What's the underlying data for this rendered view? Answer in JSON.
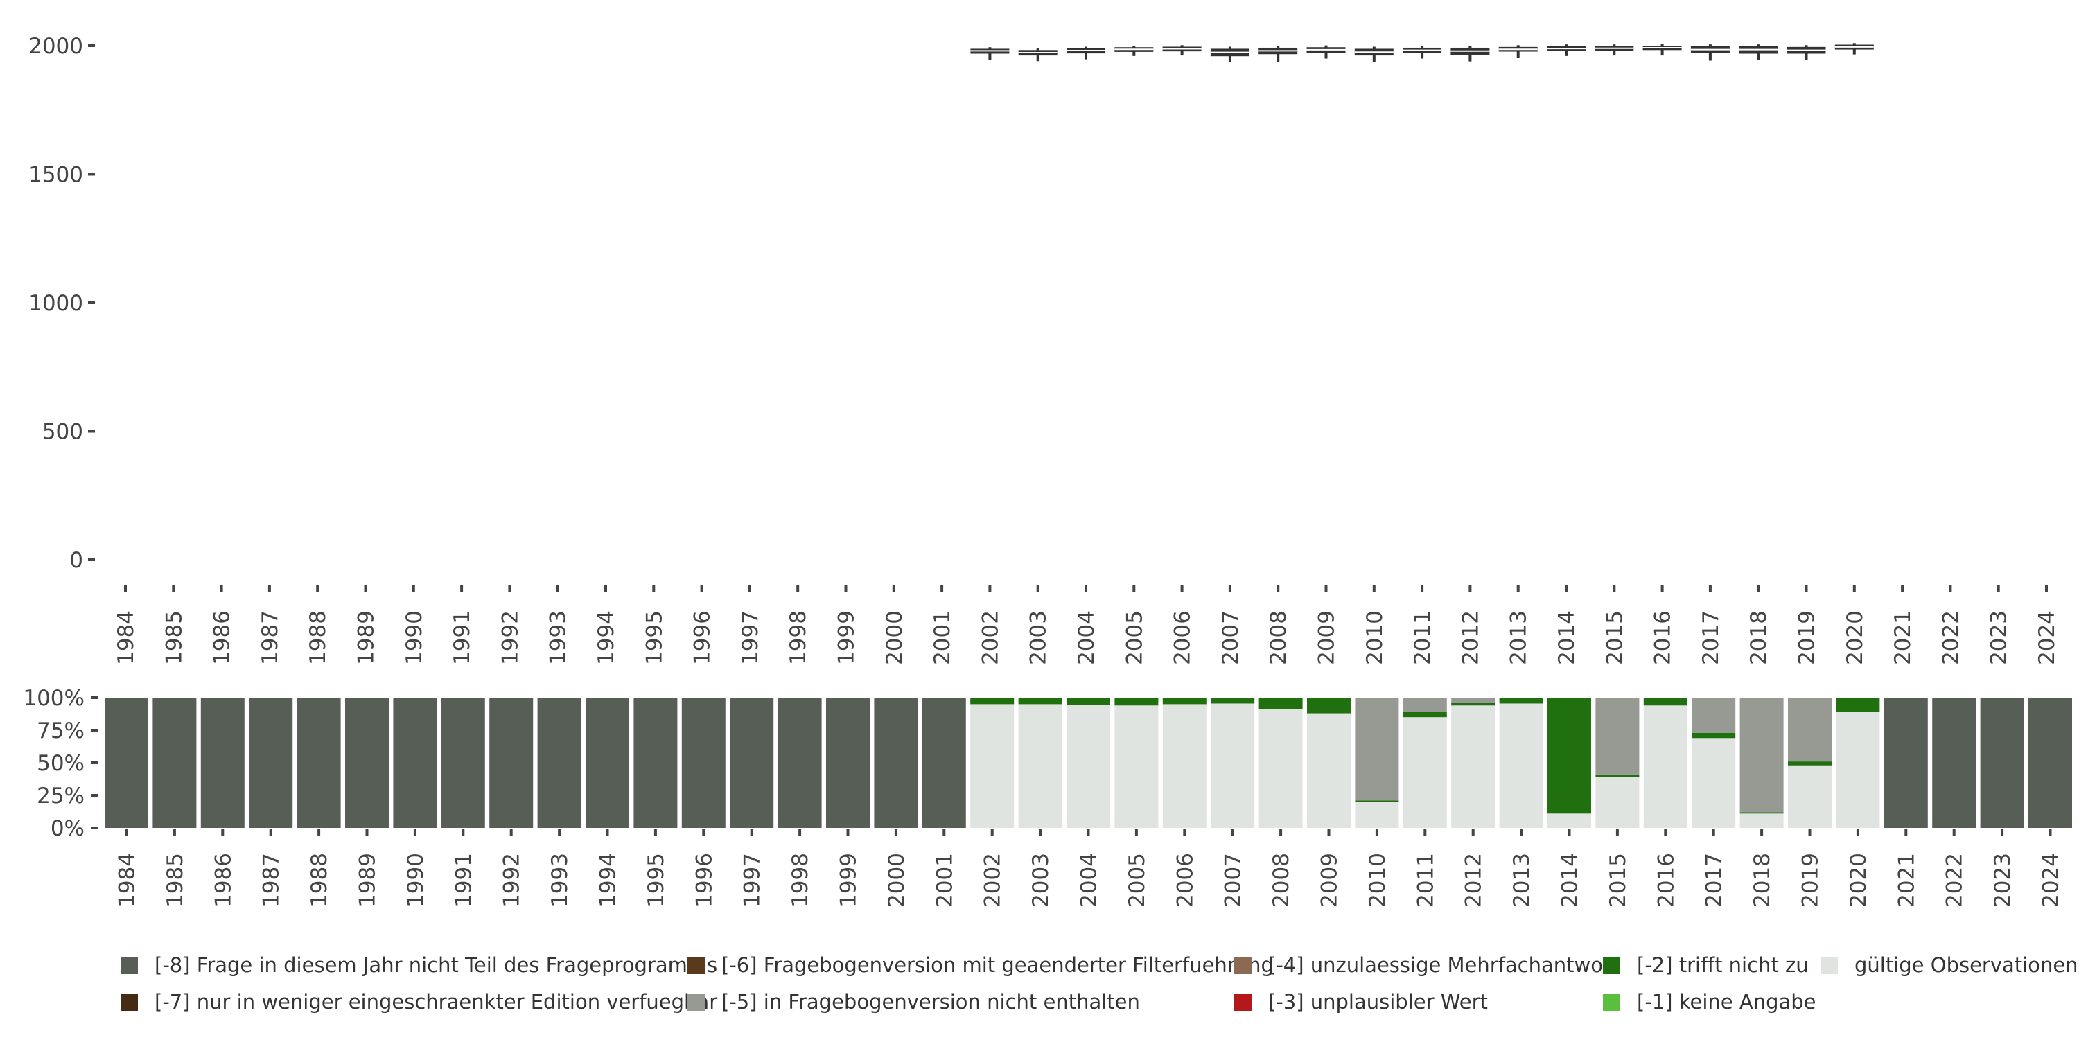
{
  "chart_data": [
    {
      "type": "boxplot",
      "title": "",
      "xlabel": "",
      "ylabel": "",
      "ylim": [
        0,
        2000
      ],
      "y_ticks": [
        0,
        500,
        1000,
        1500,
        2000
      ],
      "x_categories": [
        "1984",
        "1985",
        "1986",
        "1987",
        "1988",
        "1989",
        "1990",
        "1991",
        "1992",
        "1993",
        "1994",
        "1995",
        "1996",
        "1997",
        "1998",
        "1999",
        "2000",
        "2001",
        "2002",
        "2003",
        "2004",
        "2005",
        "2006",
        "2007",
        "2008",
        "2009",
        "2010",
        "2011",
        "2012",
        "2013",
        "2014",
        "2015",
        "2016",
        "2017",
        "2018",
        "2019",
        "2020",
        "2021",
        "2022",
        "2023",
        "2024"
      ],
      "box_color": "#333333",
      "boxes": [
        {
          "year": "2002",
          "q1": 1969,
          "q3": 1988,
          "median": 1980,
          "whisker_low": 1945,
          "whisker_high": 1994
        },
        {
          "year": "2003",
          "q1": 1962,
          "q3": 1983,
          "median": 1973,
          "whisker_low": 1940,
          "whisker_high": 1990
        },
        {
          "year": "2004",
          "q1": 1970,
          "q3": 1990,
          "median": 1981,
          "whisker_low": 1947,
          "whisker_high": 1996
        },
        {
          "year": "2005",
          "q1": 1976,
          "q3": 1994,
          "median": 1986,
          "whisker_low": 1960,
          "whisker_high": 2000
        },
        {
          "year": "2006",
          "q1": 1978,
          "q3": 1996,
          "median": 1988,
          "whisker_low": 1962,
          "whisker_high": 2002
        },
        {
          "year": "2007",
          "q1": 1959,
          "q3": 1988,
          "median": 1974,
          "whisker_low": 1938,
          "whisker_high": 1996
        },
        {
          "year": "2008",
          "q1": 1967,
          "q3": 1992,
          "median": 1980,
          "whisker_low": 1938,
          "whisker_high": 2000
        },
        {
          "year": "2009",
          "q1": 1973,
          "q3": 1994,
          "median": 1984,
          "whisker_low": 1950,
          "whisker_high": 2001
        },
        {
          "year": "2010",
          "q1": 1962,
          "q3": 1988,
          "median": 1975,
          "whisker_low": 1936,
          "whisker_high": 1996
        },
        {
          "year": "2011",
          "q1": 1971,
          "q3": 1992,
          "median": 1982,
          "whisker_low": 1950,
          "whisker_high": 1999
        },
        {
          "year": "2012",
          "q1": 1965,
          "q3": 1992,
          "median": 1979,
          "whisker_low": 1939,
          "whisker_high": 2000
        },
        {
          "year": "2013",
          "q1": 1977,
          "q3": 1995,
          "median": 1986,
          "whisker_low": 1954,
          "whisker_high": 2002
        },
        {
          "year": "2014",
          "q1": 1979,
          "q3": 1999,
          "median": 1989,
          "whisker_low": 1960,
          "whisker_high": 2005
        },
        {
          "year": "2015",
          "q1": 1981,
          "q3": 1998,
          "median": 1990,
          "whisker_low": 1962,
          "whisker_high": 2005
        },
        {
          "year": "2016",
          "q1": 1983,
          "q3": 2000,
          "median": 1992,
          "whisker_low": 1962,
          "whisker_high": 2007
        },
        {
          "year": "2017",
          "q1": 1972,
          "q3": 1998,
          "median": 1985,
          "whisker_low": 1942,
          "whisker_high": 2005
        },
        {
          "year": "2018",
          "q1": 1969,
          "q3": 1998,
          "median": 1985,
          "whisker_low": 1944,
          "whisker_high": 2005
        },
        {
          "year": "2019",
          "q1": 1969,
          "q3": 1995,
          "median": 1982,
          "whisker_low": 1944,
          "whisker_high": 2002
        },
        {
          "year": "2020",
          "q1": 1985,
          "q3": 2004,
          "median": 1995,
          "whisker_low": 1966,
          "whisker_high": 2010
        }
      ]
    },
    {
      "type": "stacked_bar_percent",
      "title": "",
      "xlabel": "",
      "ylabel": "",
      "ylim": [
        0,
        100
      ],
      "y_tick_labels": [
        "0%",
        "25%",
        "50%",
        "75%",
        "100%"
      ],
      "categories": [
        "1984",
        "1985",
        "1986",
        "1987",
        "1988",
        "1989",
        "1990",
        "1991",
        "1992",
        "1993",
        "1994",
        "1995",
        "1996",
        "1997",
        "1998",
        "1999",
        "2000",
        "2001",
        "2002",
        "2003",
        "2004",
        "2005",
        "2006",
        "2007",
        "2008",
        "2009",
        "2010",
        "2011",
        "2012",
        "2013",
        "2014",
        "2015",
        "2016",
        "2017",
        "2018",
        "2019",
        "2020",
        "2021",
        "2022",
        "2023",
        "2024"
      ],
      "series": [
        {
          "name": "gültige Observationen",
          "color": "#e0e4e0",
          "values": [
            0,
            0,
            0,
            0,
            0,
            0,
            0,
            0,
            0,
            0,
            0,
            0,
            0,
            0,
            0,
            0,
            0,
            0,
            95,
            95,
            94.5,
            94,
            95,
            95.5,
            91,
            88,
            20,
            85,
            94,
            95.5,
            11,
            39,
            94,
            69,
            11,
            48,
            89,
            0,
            0,
            0,
            0
          ]
        },
        {
          "name": "[-1] keine Angabe",
          "color": "#5abf3f",
          "values": [
            0,
            0,
            0,
            0,
            0,
            0,
            0,
            0,
            0,
            0,
            0,
            0,
            0,
            0,
            0,
            0,
            0,
            0,
            0,
            0,
            0,
            0,
            0,
            0,
            0,
            0,
            0,
            0,
            0,
            0,
            0,
            0,
            0,
            0,
            0,
            0,
            0,
            0,
            0,
            0,
            0
          ]
        },
        {
          "name": "[-2] trifft nicht zu",
          "color": "#217010",
          "values": [
            0,
            0,
            0,
            0,
            0,
            0,
            0,
            0,
            0,
            0,
            0,
            0,
            0,
            0,
            0,
            0,
            0,
            0,
            5,
            5,
            5.5,
            6,
            5,
            4.5,
            9,
            12,
            1,
            4,
            2,
            4.5,
            89,
            2,
            6,
            4,
            1,
            3,
            11,
            0,
            0,
            0,
            0
          ]
        },
        {
          "name": "[-3] unplausibler Wert",
          "color": "#b3191b",
          "values": [
            0,
            0,
            0,
            0,
            0,
            0,
            0,
            0,
            0,
            0,
            0,
            0,
            0,
            0,
            0,
            0,
            0,
            0,
            0,
            0,
            0,
            0,
            0,
            0,
            0,
            0,
            0,
            0,
            0,
            0,
            0,
            0,
            0,
            0,
            0,
            0,
            0,
            0,
            0,
            0,
            0
          ]
        },
        {
          "name": "[-4] unzulaessige Mehrfachantwort",
          "color": "#8c6a52",
          "values": [
            0,
            0,
            0,
            0,
            0,
            0,
            0,
            0,
            0,
            0,
            0,
            0,
            0,
            0,
            0,
            0,
            0,
            0,
            0,
            0,
            0,
            0,
            0,
            0,
            0,
            0,
            0,
            0,
            0,
            0,
            0,
            0,
            0,
            0,
            0,
            0,
            0,
            0,
            0,
            0,
            0
          ]
        },
        {
          "name": "[-5] in Fragebogenversion nicht enthalten",
          "color": "#969a92",
          "values": [
            0,
            0,
            0,
            0,
            0,
            0,
            0,
            0,
            0,
            0,
            0,
            0,
            0,
            0,
            0,
            0,
            0,
            0,
            0,
            0,
            0,
            0,
            0,
            0,
            0,
            0,
            79,
            11,
            4,
            0,
            0,
            59,
            0,
            27,
            88,
            49,
            0,
            0,
            0,
            0,
            0
          ]
        },
        {
          "name": "[-6] Fragebogenversion mit geaenderter Filterfuehrung",
          "color": "#593a1c",
          "values": [
            0,
            0,
            0,
            0,
            0,
            0,
            0,
            0,
            0,
            0,
            0,
            0,
            0,
            0,
            0,
            0,
            0,
            0,
            0,
            0,
            0,
            0,
            0,
            0,
            0,
            0,
            0,
            0,
            0,
            0,
            0,
            0,
            0,
            0,
            0,
            0,
            0,
            0,
            0,
            0,
            0
          ]
        },
        {
          "name": "[-7] nur in weniger eingeschraenkter Edition verfuegbar",
          "color": "#452b14",
          "values": [
            0,
            0,
            0,
            0,
            0,
            0,
            0,
            0,
            0,
            0,
            0,
            0,
            0,
            0,
            0,
            0,
            0,
            0,
            0,
            0,
            0,
            0,
            0,
            0,
            0,
            0,
            0,
            0,
            0,
            0,
            0,
            0,
            0,
            0,
            0,
            0,
            0,
            0,
            0,
            0,
            0
          ]
        },
        {
          "name": "[-8] Frage in diesem Jahr nicht Teil des Frageprogramms",
          "color": "#565e56",
          "values": [
            100,
            100,
            100,
            100,
            100,
            100,
            100,
            100,
            100,
            100,
            100,
            100,
            100,
            100,
            100,
            100,
            100,
            100,
            0,
            0,
            0,
            0,
            0,
            0,
            0,
            0,
            0,
            0,
            0,
            0,
            0,
            0,
            0,
            0,
            0,
            0,
            0,
            100,
            100,
            100,
            100
          ]
        }
      ],
      "legend_position": "bottom",
      "legend": [
        {
          "label": "[-8] Frage in diesem Jahr nicht Teil des Frageprogramms",
          "color": "#565e56"
        },
        {
          "label": "[-7] nur in weniger eingeschraenkter Edition verfuegbar",
          "color": "#452b14"
        },
        {
          "label": "[-6] Fragebogenversion mit geaenderter Filterfuehrung",
          "color": "#593a1c"
        },
        {
          "label": "[-5] in Fragebogenversion nicht enthalten",
          "color": "#969a92"
        },
        {
          "label": "[-4] unzulaessige Mehrfachantwort",
          "color": "#8c6a52"
        },
        {
          "label": "[-3] unplausibler Wert",
          "color": "#b3191b"
        },
        {
          "label": "[-2] trifft nicht zu",
          "color": "#217010"
        },
        {
          "label": "[-1] keine Angabe",
          "color": "#5abf3f"
        },
        {
          "label": "gültige Observationen",
          "color": "#e0e4e0"
        }
      ]
    }
  ]
}
